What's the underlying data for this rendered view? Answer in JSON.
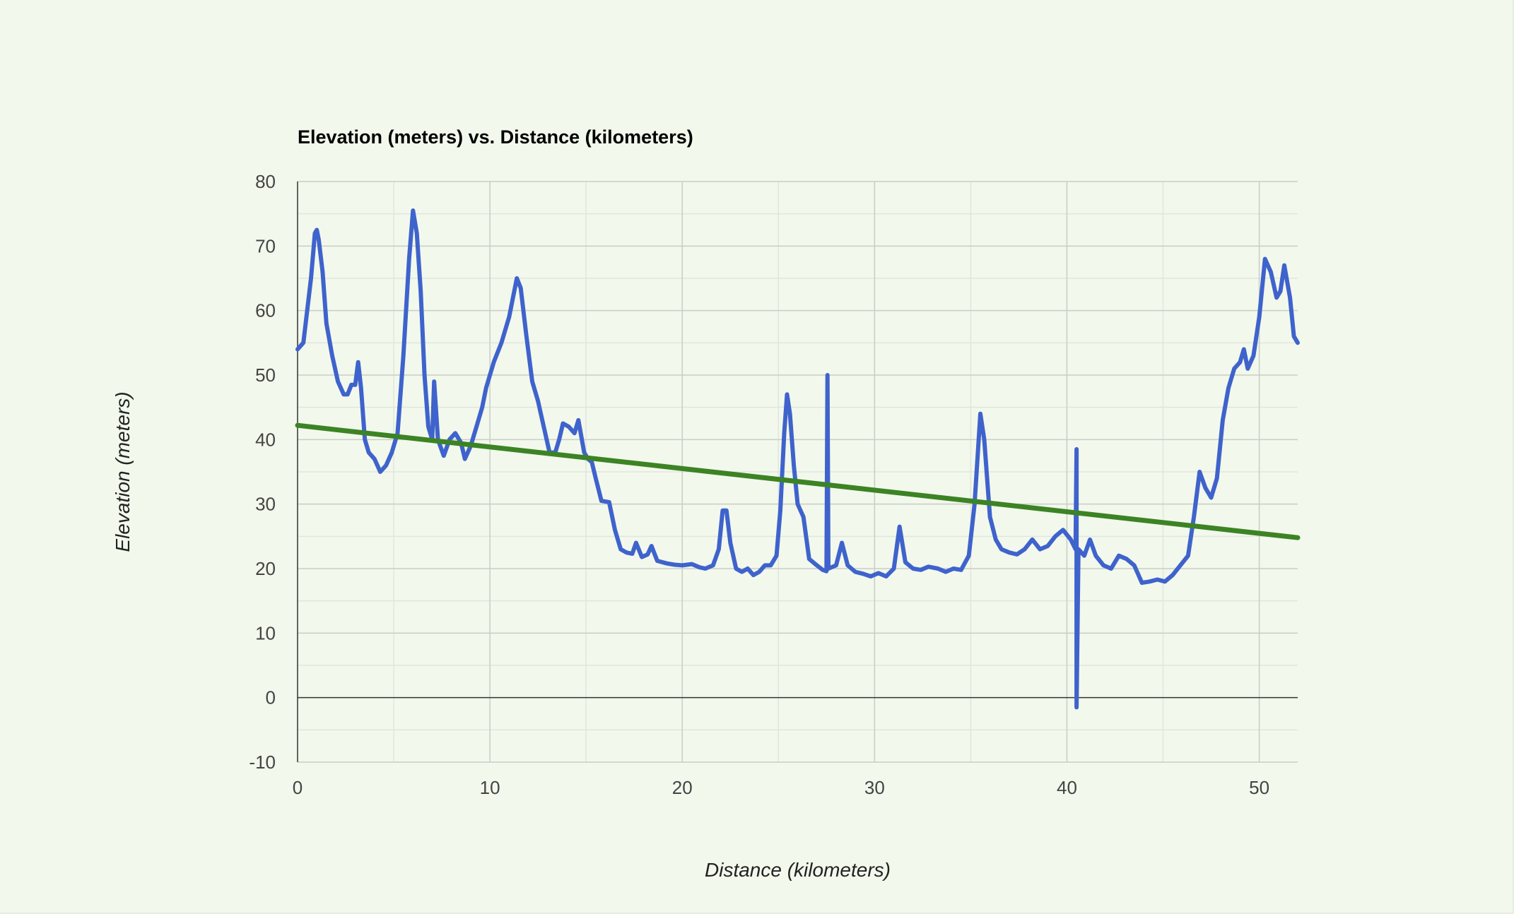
{
  "chart_data": {
    "type": "line",
    "title": "Elevation (meters) vs. Distance (kilometers)",
    "xlabel": "Distance (kilometers)",
    "ylabel": "Elevation (meters)",
    "xlim": [
      0,
      52
    ],
    "ylim": [
      -10,
      80
    ],
    "x_ticks": [
      0,
      10,
      20,
      30,
      40,
      50
    ],
    "y_ticks": [
      -10,
      0,
      10,
      20,
      30,
      40,
      50,
      60,
      70,
      80
    ],
    "grid": true,
    "minor_grid": true,
    "legend": "none",
    "series": [
      {
        "color": "#3f63cc",
        "points": [
          [
            0,
            54
          ],
          [
            0.3,
            55
          ],
          [
            0.5,
            60
          ],
          [
            0.7,
            65
          ],
          [
            0.9,
            72
          ],
          [
            1.0,
            72.5
          ],
          [
            1.1,
            71
          ],
          [
            1.3,
            66
          ],
          [
            1.5,
            58
          ],
          [
            1.8,
            53
          ],
          [
            2.1,
            49
          ],
          [
            2.4,
            47
          ],
          [
            2.6,
            47
          ],
          [
            2.8,
            48.5
          ],
          [
            3.0,
            48.5
          ],
          [
            3.15,
            52
          ],
          [
            3.3,
            48
          ],
          [
            3.5,
            40
          ],
          [
            3.7,
            38
          ],
          [
            4.0,
            37
          ],
          [
            4.3,
            35
          ],
          [
            4.6,
            36
          ],
          [
            4.9,
            38
          ],
          [
            5.2,
            41
          ],
          [
            5.5,
            53
          ],
          [
            5.8,
            68
          ],
          [
            6.0,
            75.5
          ],
          [
            6.2,
            72
          ],
          [
            6.4,
            63
          ],
          [
            6.6,
            50
          ],
          [
            6.8,
            42
          ],
          [
            7.0,
            40
          ],
          [
            7.1,
            49
          ],
          [
            7.3,
            40
          ],
          [
            7.6,
            37.5
          ],
          [
            7.9,
            40
          ],
          [
            8.2,
            41
          ],
          [
            8.5,
            39.5
          ],
          [
            8.7,
            37
          ],
          [
            9.0,
            39
          ],
          [
            9.3,
            42
          ],
          [
            9.6,
            45
          ],
          [
            9.8,
            48
          ],
          [
            10.2,
            52
          ],
          [
            10.6,
            55
          ],
          [
            11.0,
            59
          ],
          [
            11.4,
            65
          ],
          [
            11.6,
            63.5
          ],
          [
            11.9,
            56
          ],
          [
            12.2,
            49
          ],
          [
            12.5,
            46
          ],
          [
            12.8,
            42
          ],
          [
            13.1,
            38
          ],
          [
            13.4,
            38
          ],
          [
            13.6,
            40
          ],
          [
            13.8,
            42.5
          ],
          [
            14.1,
            42
          ],
          [
            14.4,
            41
          ],
          [
            14.6,
            43
          ],
          [
            14.9,
            38
          ],
          [
            15.1,
            37
          ],
          [
            15.3,
            36.5
          ],
          [
            15.5,
            34
          ],
          [
            15.8,
            30.5
          ],
          [
            16.2,
            30.3
          ],
          [
            16.5,
            26
          ],
          [
            16.8,
            23
          ],
          [
            17.1,
            22.5
          ],
          [
            17.4,
            22.3
          ],
          [
            17.6,
            24
          ],
          [
            17.9,
            21.8
          ],
          [
            18.2,
            22.2
          ],
          [
            18.4,
            23.5
          ],
          [
            18.7,
            21.2
          ],
          [
            19.2,
            20.8
          ],
          [
            19.6,
            20.6
          ],
          [
            20.0,
            20.5
          ],
          [
            20.5,
            20.7
          ],
          [
            20.9,
            20.2
          ],
          [
            21.2,
            20
          ],
          [
            21.6,
            20.5
          ],
          [
            21.9,
            23
          ],
          [
            22.1,
            29
          ],
          [
            22.3,
            29
          ],
          [
            22.5,
            24
          ],
          [
            22.8,
            20
          ],
          [
            23.1,
            19.5
          ],
          [
            23.4,
            20
          ],
          [
            23.7,
            19
          ],
          [
            24.0,
            19.5
          ],
          [
            24.3,
            20.5
          ],
          [
            24.6,
            20.5
          ],
          [
            24.9,
            22
          ],
          [
            25.1,
            29
          ],
          [
            25.3,
            41
          ],
          [
            25.45,
            47
          ],
          [
            25.6,
            44
          ],
          [
            25.8,
            36
          ],
          [
            26.0,
            30
          ],
          [
            26.3,
            28
          ],
          [
            26.6,
            21.5
          ],
          [
            27.0,
            20.5
          ],
          [
            27.3,
            19.8
          ],
          [
            27.5,
            19.6
          ],
          [
            27.55,
            50
          ],
          [
            27.6,
            20
          ],
          [
            28.0,
            20.5
          ],
          [
            28.3,
            24
          ],
          [
            28.6,
            20.5
          ],
          [
            29.0,
            19.5
          ],
          [
            29.4,
            19.2
          ],
          [
            29.8,
            18.8
          ],
          [
            30.2,
            19.3
          ],
          [
            30.6,
            18.8
          ],
          [
            31.0,
            20
          ],
          [
            31.3,
            26.5
          ],
          [
            31.6,
            21
          ],
          [
            32.0,
            20
          ],
          [
            32.4,
            19.8
          ],
          [
            32.8,
            20.3
          ],
          [
            33.3,
            20
          ],
          [
            33.7,
            19.5
          ],
          [
            34.1,
            20
          ],
          [
            34.5,
            19.8
          ],
          [
            34.9,
            22
          ],
          [
            35.2,
            30
          ],
          [
            35.5,
            44
          ],
          [
            35.7,
            40
          ],
          [
            36.0,
            28
          ],
          [
            36.3,
            24.5
          ],
          [
            36.6,
            23
          ],
          [
            37.0,
            22.5
          ],
          [
            37.4,
            22.2
          ],
          [
            37.8,
            23
          ],
          [
            38.2,
            24.5
          ],
          [
            38.6,
            23
          ],
          [
            39.0,
            23.5
          ],
          [
            39.4,
            25
          ],
          [
            39.8,
            26
          ],
          [
            40.2,
            24.5
          ],
          [
            40.45,
            23
          ],
          [
            40.5,
            38.5
          ],
          [
            40.5,
            -1.5
          ],
          [
            40.6,
            23
          ],
          [
            40.9,
            22
          ],
          [
            41.2,
            24.5
          ],
          [
            41.5,
            22
          ],
          [
            41.9,
            20.5
          ],
          [
            42.3,
            20
          ],
          [
            42.7,
            22
          ],
          [
            43.1,
            21.5
          ],
          [
            43.5,
            20.5
          ],
          [
            43.9,
            17.8
          ],
          [
            44.3,
            18
          ],
          [
            44.7,
            18.3
          ],
          [
            45.1,
            18
          ],
          [
            45.5,
            19
          ],
          [
            45.9,
            20.5
          ],
          [
            46.3,
            22
          ],
          [
            46.6,
            28
          ],
          [
            46.9,
            35
          ],
          [
            47.2,
            32.5
          ],
          [
            47.5,
            31
          ],
          [
            47.8,
            34
          ],
          [
            48.1,
            43
          ],
          [
            48.4,
            48
          ],
          [
            48.7,
            51
          ],
          [
            49.0,
            52
          ],
          [
            49.2,
            54
          ],
          [
            49.4,
            51
          ],
          [
            49.7,
            53
          ],
          [
            50.0,
            59
          ],
          [
            50.3,
            68
          ],
          [
            50.6,
            66
          ],
          [
            50.9,
            62
          ],
          [
            51.1,
            63
          ],
          [
            51.3,
            67
          ],
          [
            51.6,
            62
          ],
          [
            51.8,
            56
          ],
          [
            52.0,
            55
          ]
        ]
      },
      {
        "color": "#3c8324",
        "points": [
          [
            0,
            42.2
          ],
          [
            52,
            24.8
          ]
        ]
      }
    ]
  }
}
